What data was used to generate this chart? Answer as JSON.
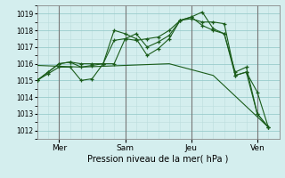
{
  "xlabel": "Pression niveau de la mer( hPa )",
  "ylim": [
    1011.5,
    1019.5
  ],
  "yticks": [
    1012,
    1013,
    1014,
    1015,
    1016,
    1017,
    1018,
    1019
  ],
  "bg_color": "#d4eeee",
  "line_color": "#1a5c1a",
  "grid_color": "#99cccc",
  "grid_minor_color": "#bbdddd",
  "vline_color": "#777777",
  "xtick_labels": [
    "Mer",
    "Sam",
    "Jeu",
    "Ven"
  ],
  "xtick_positions": [
    1,
    4,
    7,
    10
  ],
  "vlines_x": [
    1,
    4,
    7,
    10
  ],
  "xlim": [
    0,
    11
  ],
  "lines": [
    {
      "x": [
        0,
        0.5,
        1.0,
        1.5,
        2.0,
        2.5,
        3.0,
        3.5,
        4.0,
        4.5,
        5.0,
        5.5,
        6.0,
        6.5,
        7.0,
        7.5,
        8.0,
        8.5,
        9.0,
        9.5,
        10.0,
        10.5
      ],
      "y": [
        1015.0,
        1015.5,
        1016.0,
        1016.1,
        1016.0,
        1016.0,
        1016.0,
        1016.0,
        1017.5,
        1017.4,
        1017.5,
        1017.6,
        1018.0,
        1018.6,
        1018.8,
        1019.1,
        1018.1,
        1017.8,
        1015.3,
        1015.5,
        1013.0,
        1012.2
      ]
    },
    {
      "x": [
        0,
        0.5,
        1.0,
        1.5,
        2.0,
        2.5,
        3.0,
        3.5,
        4.0,
        4.5,
        5.0,
        5.5,
        6.0,
        6.5,
        7.0,
        7.5,
        8.0,
        8.5,
        9.0,
        9.5,
        10.0,
        10.5
      ],
      "y": [
        1015.0,
        1015.5,
        1016.0,
        1016.1,
        1015.8,
        1015.9,
        1016.0,
        1018.0,
        1017.8,
        1017.5,
        1016.5,
        1016.9,
        1017.5,
        1018.6,
        1018.7,
        1018.5,
        1018.5,
        1018.4,
        1015.3,
        1015.5,
        1014.3,
        1012.2
      ]
    },
    {
      "x": [
        0,
        0.5,
        1.0,
        1.5,
        2.0,
        2.5,
        3.0,
        3.5,
        4.0,
        4.5,
        5.0,
        5.5,
        6.0,
        6.5,
        7.0,
        7.5,
        8.0,
        8.5,
        9.0,
        9.5,
        10.0,
        10.5
      ],
      "y": [
        1015.0,
        1015.4,
        1015.8,
        1015.8,
        1015.0,
        1015.1,
        1016.0,
        1017.4,
        1017.5,
        1017.8,
        1017.0,
        1017.3,
        1017.7,
        1018.6,
        1018.8,
        1018.3,
        1018.0,
        1017.8,
        1015.5,
        1015.8,
        1013.0,
        1012.2
      ]
    },
    {
      "x": [
        0,
        2.0,
        4.0,
        6.0,
        8.0,
        10.5
      ],
      "y": [
        1015.9,
        1015.8,
        1015.9,
        1016.0,
        1015.3,
        1012.2
      ],
      "no_marker": true
    }
  ]
}
